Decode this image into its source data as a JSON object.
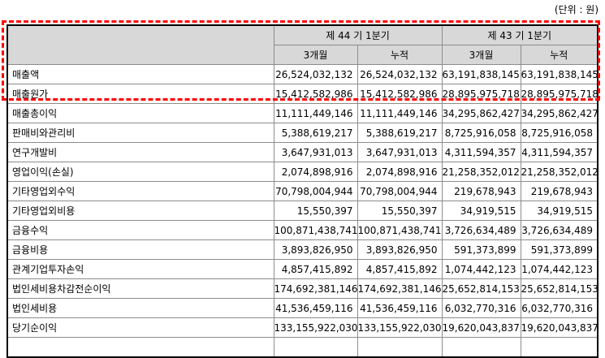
{
  "unit_label": "(단위 : 원)",
  "colors": {
    "accent": "#ff0000",
    "header-bg": "#d8d8d8",
    "grid": "#8c8c8c"
  },
  "table": {
    "col_groups": [
      {
        "label": "제 44 기 1분기"
      },
      {
        "label": "제 43 기 1분기"
      }
    ],
    "sub_headers": [
      "3개월",
      "누적",
      "3개월",
      "누적"
    ],
    "rows": [
      {
        "label": "매출액",
        "highlighted": true,
        "values": [
          "26,524,032,132",
          "26,524,032,132",
          "63,191,838,145",
          "63,191,838,145"
        ]
      },
      {
        "label": "매출원가",
        "highlighted": true,
        "values": [
          "15,412,582,986",
          "15,412,582,986",
          "28,895,975,718",
          "28,895,975,718"
        ]
      },
      {
        "label": "매출총이익",
        "highlighted": false,
        "values": [
          "11,111,449,146",
          "11,111,449,146",
          "34,295,862,427",
          "34,295,862,427"
        ]
      },
      {
        "label": "판매비와관리비",
        "highlighted": false,
        "values": [
          "5,388,619,217",
          "5,388,619,217",
          "8,725,916,058",
          "8,725,916,058"
        ]
      },
      {
        "label": "연구개발비",
        "highlighted": false,
        "values": [
          "3,647,931,013",
          "3,647,931,013",
          "4,311,594,357",
          "4,311,594,357"
        ]
      },
      {
        "label": "영업이익(손실)",
        "highlighted": false,
        "values": [
          "2,074,898,916",
          "2,074,898,916",
          "21,258,352,012",
          "21,258,352,012"
        ]
      },
      {
        "label": "기타영업외수익",
        "highlighted": false,
        "values": [
          "70,798,004,944",
          "70,798,004,944",
          "219,678,943",
          "219,678,943"
        ]
      },
      {
        "label": "기타영업외비용",
        "highlighted": false,
        "values": [
          "15,550,397",
          "15,550,397",
          "34,919,515",
          "34,919,515"
        ]
      },
      {
        "label": "금융수익",
        "highlighted": false,
        "values": [
          "100,871,438,741",
          "100,871,438,741",
          "3,726,634,489",
          "3,726,634,489"
        ]
      },
      {
        "label": "금융비용",
        "highlighted": false,
        "values": [
          "3,893,826,950",
          "3,893,826,950",
          "591,373,899",
          "591,373,899"
        ]
      },
      {
        "label": "관계기업투자손익",
        "highlighted": false,
        "values": [
          "4,857,415,892",
          "4,857,415,892",
          "1,074,442,123",
          "1,074,442,123"
        ]
      },
      {
        "label": "법인세비용차감전순이익",
        "highlighted": false,
        "values": [
          "174,692,381,146",
          "174,692,381,146",
          "25,652,814,153",
          "25,652,814,153"
        ]
      },
      {
        "label": "법인세비용",
        "highlighted": false,
        "values": [
          "41,536,459,116",
          "41,536,459,116",
          "6,032,770,316",
          "6,032,770,316"
        ]
      },
      {
        "label": "당기순이익",
        "highlighted": false,
        "values": [
          "133,155,922,030",
          "133,155,922,030",
          "19,620,043,837",
          "19,620,043,837"
        ]
      }
    ]
  }
}
